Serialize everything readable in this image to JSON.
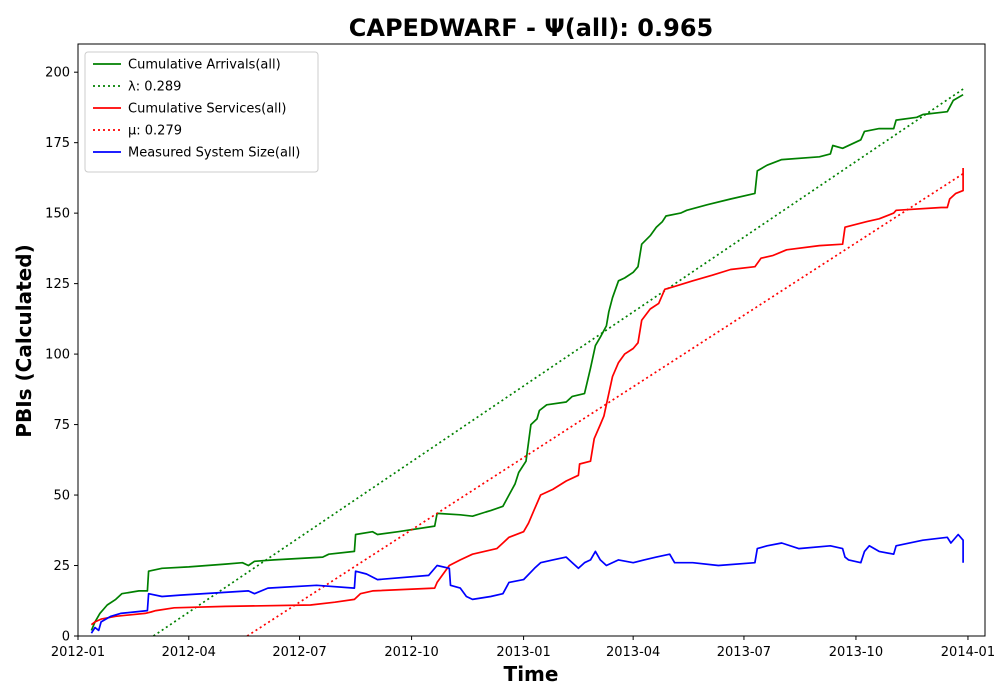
{
  "chart_data": {
    "type": "line",
    "title": "CAPEDWARF -  Ψ(all): 0.965",
    "xlabel": "Time",
    "ylabel": "PBIs (Calculated)",
    "xlim": [
      "2012-01-01",
      "2014-01-15"
    ],
    "ylim": [
      0,
      210
    ],
    "x_ticks": [
      "2012-01",
      "2012-04",
      "2012-07",
      "2012-10",
      "2013-01",
      "2013-04",
      "2013-07",
      "2013-10",
      "2014-01"
    ],
    "y_ticks": [
      0,
      25,
      50,
      75,
      100,
      125,
      150,
      175,
      200
    ],
    "grid": false,
    "legend_position": "top-left",
    "series": [
      {
        "name": "Cumulative Arrivals(all)",
        "color": "#008000",
        "style": "solid",
        "points": [
          [
            "2012-01-12",
            2
          ],
          [
            "2012-01-15",
            5
          ],
          [
            "2012-01-19",
            8
          ],
          [
            "2012-01-25",
            11
          ],
          [
            "2012-02-01",
            13
          ],
          [
            "2012-02-06",
            15
          ],
          [
            "2012-02-20",
            16
          ],
          [
            "2012-02-27",
            16
          ],
          [
            "2012-02-28",
            23
          ],
          [
            "2012-03-10",
            24
          ],
          [
            "2012-04-01",
            24.5
          ],
          [
            "2012-05-01",
            25.5
          ],
          [
            "2012-05-15",
            26
          ],
          [
            "2012-05-20",
            25
          ],
          [
            "2012-05-25",
            26.5
          ],
          [
            "2012-06-10",
            27
          ],
          [
            "2012-07-20",
            28
          ],
          [
            "2012-07-25",
            29
          ],
          [
            "2012-08-15",
            30
          ],
          [
            "2012-08-16",
            36
          ],
          [
            "2012-08-30",
            37
          ],
          [
            "2012-09-03",
            36
          ],
          [
            "2012-09-20",
            37
          ],
          [
            "2012-10-20",
            39
          ],
          [
            "2012-10-22",
            43.5
          ],
          [
            "2012-11-10",
            43
          ],
          [
            "2012-11-20",
            42.5
          ],
          [
            "2012-12-01",
            44
          ],
          [
            "2012-12-05",
            44.5
          ],
          [
            "2012-12-15",
            46
          ],
          [
            "2012-12-20",
            50
          ],
          [
            "2012-12-25",
            54
          ],
          [
            "2012-12-28",
            58
          ],
          [
            "2013-01-03",
            62
          ],
          [
            "2013-01-07",
            75
          ],
          [
            "2013-01-12",
            77
          ],
          [
            "2013-01-14",
            80
          ],
          [
            "2013-01-20",
            82
          ],
          [
            "2013-02-05",
            83
          ],
          [
            "2013-02-10",
            85
          ],
          [
            "2013-02-20",
            86
          ],
          [
            "2013-02-25",
            95
          ],
          [
            "2013-03-01",
            103
          ],
          [
            "2013-03-05",
            106
          ],
          [
            "2013-03-10",
            110
          ],
          [
            "2013-03-12",
            115
          ],
          [
            "2013-03-15",
            120
          ],
          [
            "2013-03-20",
            126
          ],
          [
            "2013-03-25",
            127
          ],
          [
            "2013-04-01",
            129
          ],
          [
            "2013-04-05",
            131
          ],
          [
            "2013-04-08",
            139
          ],
          [
            "2013-04-15",
            142
          ],
          [
            "2013-04-20",
            145
          ],
          [
            "2013-04-25",
            147
          ],
          [
            "2013-04-28",
            149
          ],
          [
            "2013-05-10",
            150
          ],
          [
            "2013-05-15",
            151
          ],
          [
            "2013-06-01",
            153
          ],
          [
            "2013-06-20",
            155
          ],
          [
            "2013-07-10",
            157
          ],
          [
            "2013-07-12",
            165
          ],
          [
            "2013-07-20",
            167
          ],
          [
            "2013-08-01",
            169
          ],
          [
            "2013-09-01",
            170
          ],
          [
            "2013-09-10",
            171
          ],
          [
            "2013-09-12",
            174
          ],
          [
            "2013-09-20",
            173
          ],
          [
            "2013-10-05",
            176
          ],
          [
            "2013-10-08",
            179
          ],
          [
            "2013-10-20",
            180
          ],
          [
            "2013-11-01",
            180
          ],
          [
            "2013-11-03",
            183
          ],
          [
            "2013-11-20",
            184
          ],
          [
            "2013-11-25",
            185
          ],
          [
            "2013-12-15",
            186
          ],
          [
            "2013-12-20",
            190
          ],
          [
            "2013-12-28",
            192
          ]
        ]
      },
      {
        "name": "λ: 0.289",
        "color": "#008000",
        "style": "dotted",
        "points": [
          [
            "2012-03-03",
            0
          ],
          [
            "2013-12-28",
            194
          ]
        ]
      },
      {
        "name": "Cumulative Services(all)",
        "color": "#ff0000",
        "style": "solid",
        "points": [
          [
            "2012-01-12",
            4
          ],
          [
            "2012-01-15",
            5
          ],
          [
            "2012-01-20",
            6
          ],
          [
            "2012-02-01",
            7
          ],
          [
            "2012-02-25",
            8
          ],
          [
            "2012-03-01",
            8.5
          ],
          [
            "2012-03-05",
            9
          ],
          [
            "2012-03-20",
            10
          ],
          [
            "2012-05-01",
            10.5
          ],
          [
            "2012-07-10",
            11
          ],
          [
            "2012-07-30",
            12
          ],
          [
            "2012-08-15",
            13
          ],
          [
            "2012-08-20",
            15
          ],
          [
            "2012-08-30",
            16
          ],
          [
            "2012-10-20",
            17
          ],
          [
            "2012-10-22",
            19
          ],
          [
            "2012-11-01",
            25
          ],
          [
            "2012-11-10",
            27
          ],
          [
            "2012-11-20",
            29
          ],
          [
            "2012-12-10",
            31
          ],
          [
            "2012-12-15",
            33
          ],
          [
            "2012-12-20",
            35
          ],
          [
            "2013-01-01",
            37
          ],
          [
            "2013-01-05",
            40
          ],
          [
            "2013-01-10",
            45
          ],
          [
            "2013-01-15",
            50
          ],
          [
            "2013-01-25",
            52
          ],
          [
            "2013-02-05",
            55
          ],
          [
            "2013-02-15",
            57
          ],
          [
            "2013-02-16",
            61
          ],
          [
            "2013-02-25",
            62
          ],
          [
            "2013-02-28",
            70
          ],
          [
            "2013-03-05",
            75
          ],
          [
            "2013-03-08",
            78
          ],
          [
            "2013-03-12",
            86
          ],
          [
            "2013-03-15",
            92
          ],
          [
            "2013-03-20",
            97
          ],
          [
            "2013-03-25",
            100
          ],
          [
            "2013-04-01",
            102
          ],
          [
            "2013-04-05",
            104
          ],
          [
            "2013-04-08",
            112
          ],
          [
            "2013-04-15",
            116
          ],
          [
            "2013-04-22",
            118
          ],
          [
            "2013-04-27",
            123
          ],
          [
            "2013-05-05",
            124
          ],
          [
            "2013-05-20",
            126
          ],
          [
            "2013-06-05",
            128
          ],
          [
            "2013-06-20",
            130
          ],
          [
            "2013-07-10",
            131
          ],
          [
            "2013-07-15",
            134
          ],
          [
            "2013-07-25",
            135
          ],
          [
            "2013-08-05",
            137
          ],
          [
            "2013-09-01",
            138.5
          ],
          [
            "2013-09-20",
            139
          ],
          [
            "2013-09-22",
            145
          ],
          [
            "2013-10-10",
            147
          ],
          [
            "2013-10-20",
            148
          ],
          [
            "2013-11-01",
            150
          ],
          [
            "2013-11-03",
            151
          ],
          [
            "2013-12-10",
            152
          ],
          [
            "2013-12-15",
            152
          ],
          [
            "2013-12-17",
            155
          ],
          [
            "2013-12-22",
            157
          ],
          [
            "2013-12-28",
            158
          ],
          [
            "2013-12-28",
            166
          ]
        ]
      },
      {
        "name": "μ: 0.279",
        "color": "#ff0000",
        "style": "dotted",
        "points": [
          [
            "2012-05-19",
            0
          ],
          [
            "2013-12-28",
            164
          ]
        ]
      },
      {
        "name": "Measured System Size(all)",
        "color": "#0000ff",
        "style": "solid",
        "points": [
          [
            "2012-01-12",
            1
          ],
          [
            "2012-01-15",
            3
          ],
          [
            "2012-01-18",
            2
          ],
          [
            "2012-01-20",
            5
          ],
          [
            "2012-01-28",
            7
          ],
          [
            "2012-02-05",
            8
          ],
          [
            "2012-02-27",
            9
          ],
          [
            "2012-02-28",
            15
          ],
          [
            "2012-03-10",
            14
          ],
          [
            "2012-03-25",
            14.5
          ],
          [
            "2012-05-20",
            16
          ],
          [
            "2012-05-25",
            15
          ],
          [
            "2012-06-05",
            17
          ],
          [
            "2012-07-15",
            18
          ],
          [
            "2012-08-15",
            17
          ],
          [
            "2012-08-16",
            23
          ],
          [
            "2012-08-25",
            22
          ],
          [
            "2012-09-03",
            20
          ],
          [
            "2012-10-15",
            21.5
          ],
          [
            "2012-10-22",
            25
          ],
          [
            "2012-11-01",
            24
          ],
          [
            "2012-11-02",
            18
          ],
          [
            "2012-11-10",
            17
          ],
          [
            "2012-11-15",
            14
          ],
          [
            "2012-11-20",
            13
          ],
          [
            "2012-12-05",
            14
          ],
          [
            "2012-12-15",
            15
          ],
          [
            "2012-12-20",
            19
          ],
          [
            "2013-01-01",
            20
          ],
          [
            "2013-01-10",
            24
          ],
          [
            "2013-01-15",
            26
          ],
          [
            "2013-01-25",
            27
          ],
          [
            "2013-02-05",
            28
          ],
          [
            "2013-02-10",
            26
          ],
          [
            "2013-02-15",
            24
          ],
          [
            "2013-02-20",
            26
          ],
          [
            "2013-02-25",
            27
          ],
          [
            "2013-03-01",
            30
          ],
          [
            "2013-03-05",
            27
          ],
          [
            "2013-03-10",
            25
          ],
          [
            "2013-03-20",
            27
          ],
          [
            "2013-04-01",
            26
          ],
          [
            "2013-04-10",
            27
          ],
          [
            "2013-04-20",
            28
          ],
          [
            "2013-05-01",
            29
          ],
          [
            "2013-05-05",
            26
          ],
          [
            "2013-05-20",
            26
          ],
          [
            "2013-06-10",
            25
          ],
          [
            "2013-07-10",
            26
          ],
          [
            "2013-07-12",
            31
          ],
          [
            "2013-07-20",
            32
          ],
          [
            "2013-08-01",
            33
          ],
          [
            "2013-08-15",
            31
          ],
          [
            "2013-09-10",
            32
          ],
          [
            "2013-09-20",
            31
          ],
          [
            "2013-09-22",
            28
          ],
          [
            "2013-09-25",
            27
          ],
          [
            "2013-10-05",
            26
          ],
          [
            "2013-10-08",
            30
          ],
          [
            "2013-10-12",
            32
          ],
          [
            "2013-10-20",
            30
          ],
          [
            "2013-11-01",
            29
          ],
          [
            "2013-11-03",
            32
          ],
          [
            "2013-11-25",
            34
          ],
          [
            "2013-12-15",
            35
          ],
          [
            "2013-12-18",
            33
          ],
          [
            "2013-12-24",
            36
          ],
          [
            "2013-12-28",
            34
          ],
          [
            "2013-12-28",
            26
          ]
        ]
      }
    ]
  }
}
